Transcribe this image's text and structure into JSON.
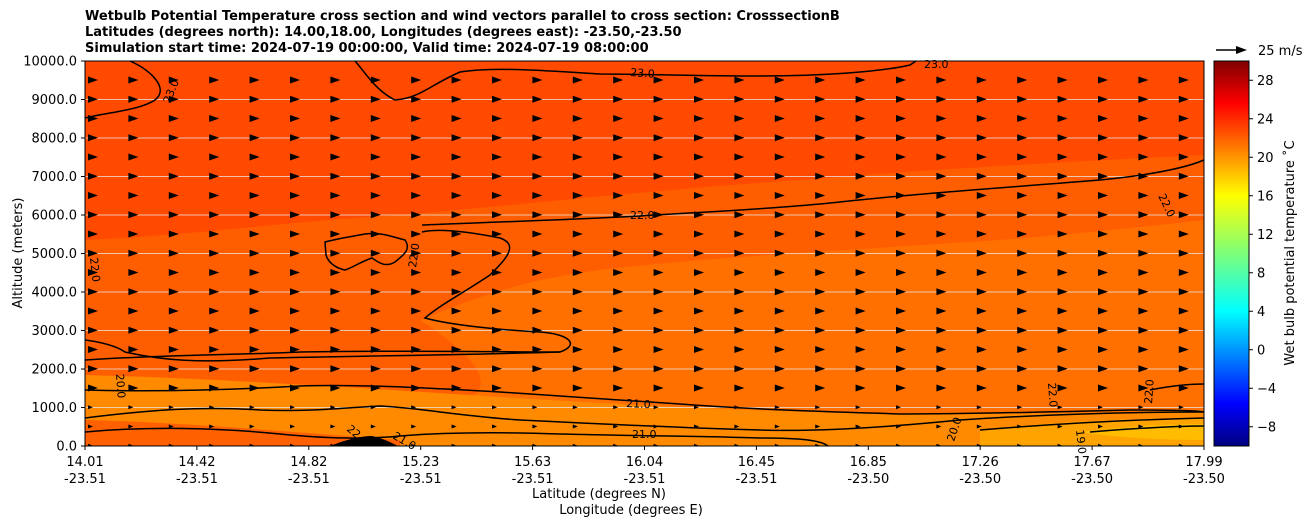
{
  "chart_data": {
    "type": "heatmap",
    "subtype": "filled-contour cross section with contour lines and wind vectors",
    "title_lines": [
      "Wetbulb Potential Temperature cross section and wind vectors parallel to cross section: CrosssectionB",
      "Latitudes (degrees north): 14.00,18.00, Longitudes (degrees east): -23.50,-23.50",
      "Simulation start time: 2024-07-19 00:00:00, Valid time: 2024-07-19 08:00:00"
    ],
    "xlabel_lat": "Latitude (degrees N)",
    "xlabel_lon": "Longitude (degrees E)",
    "ylabel": "Altitude (meters)",
    "x_ticks": [
      {
        "lat": "14.01",
        "lon": "-23.51"
      },
      {
        "lat": "14.42",
        "lon": "-23.51"
      },
      {
        "lat": "14.82",
        "lon": "-23.51"
      },
      {
        "lat": "15.23",
        "lon": "-23.51"
      },
      {
        "lat": "15.63",
        "lon": "-23.51"
      },
      {
        "lat": "16.04",
        "lon": "-23.51"
      },
      {
        "lat": "16.45",
        "lon": "-23.51"
      },
      {
        "lat": "16.85",
        "lon": "-23.50"
      },
      {
        "lat": "17.26",
        "lon": "-23.50"
      },
      {
        "lat": "17.67",
        "lon": "-23.50"
      },
      {
        "lat": "17.99",
        "lon": "-23.50"
      }
    ],
    "y_ticks": [
      "0.0",
      "1000.0",
      "2000.0",
      "3000.0",
      "4000.0",
      "5000.0",
      "6000.0",
      "7000.0",
      "8000.0",
      "9000.0",
      "10000.0"
    ],
    "ylim": [
      0,
      10000
    ],
    "grid": "horizontal",
    "colorbar": {
      "label": "Wet bulb potential temperature $^\\circ$C",
      "label_text": "Wet bulb potential temperature ˚C",
      "range": [
        -10,
        30
      ],
      "ticks": [
        "28",
        "24",
        "20",
        "16",
        "12",
        "8",
        "4",
        "0",
        "−4",
        "−8"
      ],
      "colormap": "jet"
    },
    "quiver_key": {
      "label": "25 m/s"
    },
    "contour_labels": [
      {
        "text": "23.0"
      },
      {
        "text": "23.0"
      },
      {
        "text": "23.0"
      },
      {
        "text": "22.0"
      },
      {
        "text": "22.0"
      },
      {
        "text": "22.0"
      },
      {
        "text": "22.0"
      },
      {
        "text": "22.0"
      },
      {
        "text": "22.0"
      },
      {
        "text": "22.0"
      },
      {
        "text": "21.0"
      },
      {
        "text": "21.0"
      },
      {
        "text": "21.0"
      },
      {
        "text": "20.0"
      },
      {
        "text": "20.0"
      },
      {
        "text": "19.0"
      }
    ]
  }
}
